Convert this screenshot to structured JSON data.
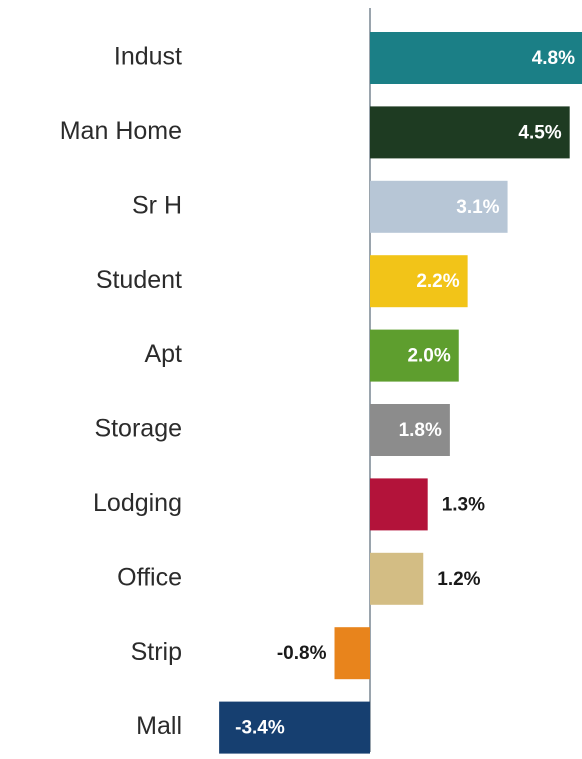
{
  "chart_data": {
    "type": "bar",
    "orientation": "horizontal",
    "categories": [
      "Indust",
      "Man Home",
      "Sr H",
      "Student",
      "Apt",
      "Storage",
      "Lodging",
      "Office",
      "Strip",
      "Mall"
    ],
    "values": [
      4.8,
      4.5,
      3.1,
      2.2,
      2.0,
      1.8,
      1.3,
      1.2,
      -0.8,
      -3.4
    ],
    "value_labels": [
      "4.8%",
      "4.5%",
      "3.1%",
      "2.2%",
      "2.0%",
      "1.8%",
      "1.3%",
      "1.2%",
      "-0.8%",
      "-3.4%"
    ],
    "colors": [
      "#1b7f86",
      "#1e3b22",
      "#b7c6d6",
      "#f2c418",
      "#5e9e2e",
      "#8c8c8c",
      "#b3133a",
      "#d3bd84",
      "#e8841c",
      "#163f70"
    ],
    "label_colors": [
      "#ffffff",
      "#ffffff",
      "#ffffff",
      "#ffffff",
      "#ffffff",
      "#ffffff",
      "#1a1a1a",
      "#1a1a1a",
      "#1a1a1a",
      "#ffffff"
    ],
    "label_inside": [
      true,
      true,
      true,
      true,
      true,
      true,
      false,
      false,
      false,
      true
    ],
    "xlim": [
      -3.6,
      4.8
    ],
    "axis_color": "#9aa4ad",
    "grid": false,
    "title": "",
    "xlabel": "",
    "ylabel": ""
  }
}
